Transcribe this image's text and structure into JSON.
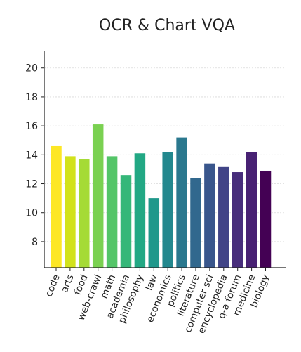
{
  "chart_data": {
    "type": "bar",
    "title": "OCR & Chart VQA",
    "xlabel": "",
    "ylabel": "",
    "ylim": [
      6.2,
      21.2
    ],
    "yticks": [
      8,
      10,
      12,
      14,
      16,
      18,
      20
    ],
    "grid": true,
    "categories": [
      "code",
      "arts",
      "food",
      "web-crawl",
      "math",
      "academia",
      "philosophy",
      "law",
      "economics",
      "politics",
      "literature",
      "computer sci",
      "encyclopedia",
      "q-a forum",
      "medicine",
      "biology"
    ],
    "values": [
      14.6,
      13.9,
      13.7,
      16.1,
      13.9,
      12.6,
      14.1,
      11.0,
      14.2,
      15.2,
      12.4,
      13.4,
      13.2,
      12.8,
      14.2,
      12.9
    ],
    "colors": [
      "#fde725",
      "#d2e21b",
      "#a5db36",
      "#7ad151",
      "#54c568",
      "#35b779",
      "#22a884",
      "#1f988b",
      "#23888e",
      "#2a788e",
      "#31688e",
      "#39568c",
      "#414487",
      "#472d7b",
      "#482173",
      "#440154"
    ]
  }
}
